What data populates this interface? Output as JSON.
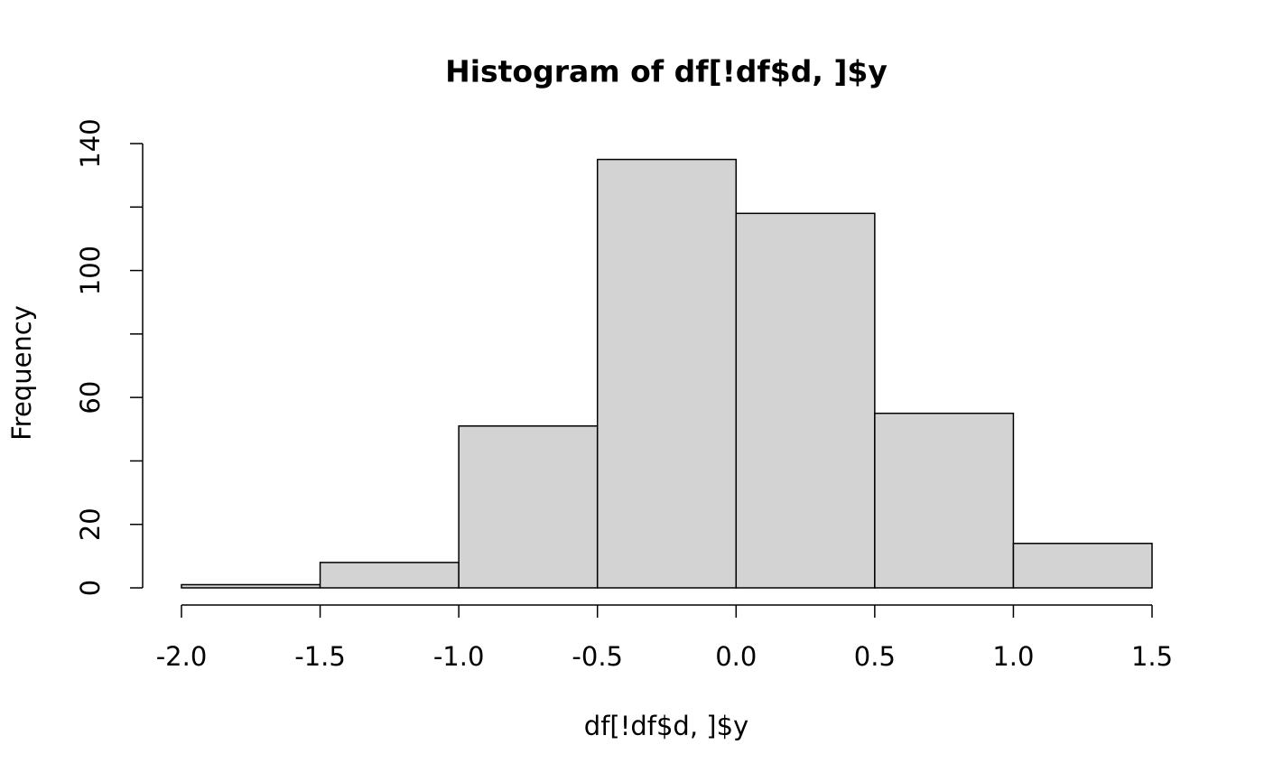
{
  "chart_data": {
    "type": "histogram",
    "title": "Histogram of df[!df$d, ]$y",
    "xlabel": "df[!df$d, ]$y",
    "ylabel": "Frequency",
    "bins": [
      -2.0,
      -1.5,
      -1.0,
      -0.5,
      0.0,
      0.5,
      1.0,
      1.5
    ],
    "values": [
      1,
      8,
      51,
      135,
      118,
      55,
      14
    ],
    "color": "#d3d3d3",
    "edgecolor": "#000000",
    "xlim": [
      -2.0,
      1.5
    ],
    "xticks": [
      {
        "value": -2.0,
        "label": "-2.0"
      },
      -1.5,
      {
        "value": -1.0,
        "label": "-1.0"
      },
      -0.5,
      {
        "value": 0.0,
        "label": "0.0"
      },
      0.5,
      {
        "value": 1.0,
        "label": "1.0"
      },
      1.5
    ],
    "ylim": [
      0,
      140
    ],
    "yticks": [
      0,
      20,
      {
        "value": 40,
        "label": null
      },
      60,
      {
        "value": 80,
        "label": null
      },
      100,
      {
        "value": 120,
        "label": null
      },
      140
    ],
    "grid": false
  }
}
